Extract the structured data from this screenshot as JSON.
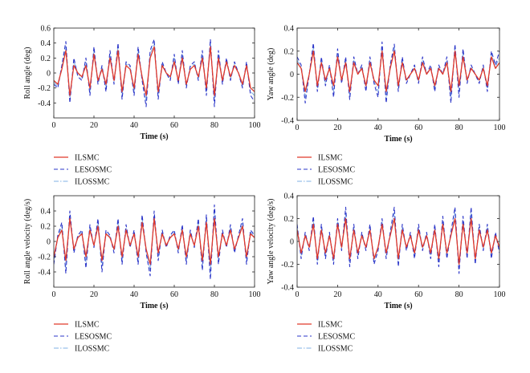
{
  "legend": [
    {
      "name": "ILSMC",
      "color": "#e0392b",
      "dash": "solid"
    },
    {
      "name": "LESOSMC",
      "color": "#2b35c8",
      "dash": "dashed"
    },
    {
      "name": "ILOSSMC",
      "color": "#7fb0e6",
      "dash": "dashdot"
    }
  ],
  "chart_data": [
    {
      "type": "line",
      "xlabel": "Time (s)",
      "ylabel": "Roll angle (deg)",
      "xlim": [
        0,
        100
      ],
      "ylim": [
        -0.6,
        0.6
      ],
      "xticks": [
        0,
        20,
        40,
        60,
        80,
        100
      ],
      "yticks": [
        -0.4,
        -0.2,
        0,
        0.2,
        0.4,
        0.6
      ],
      "ytick_labels": [
        "-0.4",
        "-0.2",
        "0",
        "0.2",
        "0.4",
        "0.6"
      ],
      "x": [
        0,
        2,
        4,
        6,
        8,
        10,
        12,
        14,
        16,
        18,
        20,
        22,
        24,
        26,
        28,
        30,
        32,
        34,
        36,
        38,
        40,
        42,
        44,
        46,
        48,
        50,
        52,
        54,
        56,
        58,
        60,
        62,
        64,
        66,
        68,
        70,
        72,
        74,
        76,
        78,
        80,
        82,
        84,
        86,
        88,
        90,
        92,
        94,
        96,
        98,
        100
      ],
      "series": [
        {
          "name": "ILSMC",
          "values": [
            -0.1,
            -0.15,
            0.05,
            0.3,
            -0.3,
            0.1,
            0.0,
            -0.05,
            0.1,
            -0.2,
            0.25,
            -0.1,
            0.05,
            -0.15,
            0.2,
            -0.1,
            0.3,
            -0.25,
            0.1,
            0.05,
            -0.2,
            0.25,
            -0.05,
            -0.3,
            0.2,
            0.35,
            -0.25,
            0.1,
            0.0,
            -0.05,
            0.15,
            -0.1,
            0.2,
            -0.15,
            0.05,
            0.1,
            -0.05,
            0.2,
            -0.2,
            0.35,
            -0.3,
            0.2,
            -0.1,
            0.15,
            -0.05,
            0.1,
            0.0,
            -0.15,
            0.1,
            -0.2,
            -0.25
          ]
        },
        {
          "name": "LESOSMC",
          "values": [
            -0.15,
            -0.2,
            0.1,
            0.42,
            -0.4,
            0.2,
            -0.05,
            -0.1,
            0.2,
            -0.3,
            0.35,
            -0.15,
            0.1,
            -0.25,
            0.3,
            -0.15,
            0.4,
            -0.35,
            0.15,
            0.1,
            -0.3,
            0.35,
            -0.1,
            -0.45,
            0.3,
            0.45,
            -0.35,
            0.15,
            0.0,
            -0.1,
            0.25,
            -0.15,
            0.3,
            -0.2,
            0.1,
            0.15,
            -0.1,
            0.3,
            -0.3,
            0.45,
            -0.45,
            0.3,
            -0.15,
            0.2,
            -0.1,
            0.15,
            0.0,
            -0.2,
            0.15,
            -0.3,
            -0.38
          ]
        },
        {
          "name": "ILOSSMC",
          "values": [
            -0.12,
            -0.18,
            0.08,
            0.35,
            -0.35,
            0.15,
            0.0,
            -0.08,
            0.15,
            -0.25,
            0.3,
            -0.12,
            0.08,
            -0.2,
            0.25,
            -0.12,
            0.35,
            -0.3,
            0.12,
            0.08,
            -0.25,
            0.3,
            -0.08,
            -0.38,
            0.25,
            0.4,
            -0.3,
            0.12,
            0.0,
            -0.08,
            0.2,
            -0.12,
            0.25,
            -0.18,
            0.08,
            0.12,
            -0.08,
            0.25,
            -0.25,
            0.4,
            -0.38,
            0.25,
            -0.12,
            0.18,
            -0.08,
            0.12,
            0.0,
            -0.18,
            0.12,
            -0.25,
            -0.3
          ]
        }
      ]
    },
    {
      "type": "line",
      "xlabel": "Time (s)",
      "ylabel": "Yaw angle (deg)",
      "xlim": [
        0,
        100
      ],
      "ylim": [
        -0.4,
        0.4
      ],
      "xticks": [
        0,
        20,
        40,
        60,
        80,
        100
      ],
      "yticks": [
        -0.4,
        -0.2,
        0,
        0.2,
        0.4
      ],
      "ytick_labels": [
        "-0.4",
        "-0.2",
        "0",
        "0.2",
        "0.4"
      ],
      "x": [
        0,
        2,
        4,
        6,
        8,
        10,
        12,
        14,
        16,
        18,
        20,
        22,
        24,
        26,
        28,
        30,
        32,
        34,
        36,
        38,
        40,
        42,
        44,
        46,
        48,
        50,
        52,
        54,
        56,
        58,
        60,
        62,
        64,
        66,
        68,
        70,
        72,
        74,
        76,
        78,
        80,
        82,
        84,
        86,
        88,
        90,
        92,
        94,
        96,
        98,
        100
      ],
      "series": [
        {
          "name": "ILSMC",
          "values": [
            0.1,
            0.05,
            -0.15,
            0.0,
            0.2,
            -0.1,
            0.1,
            -0.05,
            0.05,
            -0.1,
            0.15,
            -0.05,
            0.1,
            -0.15,
            0.1,
            0.0,
            0.05,
            -0.1,
            0.1,
            -0.05,
            -0.1,
            0.2,
            -0.15,
            0.05,
            0.2,
            -0.1,
            0.1,
            -0.05,
            0.0,
            0.05,
            -0.05,
            0.1,
            0.0,
            0.05,
            -0.1,
            0.05,
            0.0,
            0.1,
            -0.15,
            0.2,
            -0.1,
            0.15,
            -0.05,
            0.05,
            0.0,
            -0.05,
            0.05,
            -0.1,
            0.15,
            0.05,
            0.1
          ]
        },
        {
          "name": "LESOSMC",
          "values": [
            0.15,
            0.08,
            -0.25,
            0.0,
            0.27,
            -0.15,
            0.15,
            -0.1,
            0.08,
            -0.2,
            0.22,
            -0.08,
            0.15,
            -0.22,
            0.15,
            0.0,
            0.08,
            -0.15,
            0.15,
            -0.08,
            -0.2,
            0.28,
            -0.25,
            0.08,
            0.26,
            -0.15,
            0.15,
            -0.08,
            0.0,
            0.08,
            -0.08,
            0.15,
            0.0,
            0.08,
            -0.15,
            0.08,
            0.0,
            0.15,
            -0.25,
            0.26,
            -0.2,
            0.22,
            -0.08,
            0.08,
            0.0,
            -0.08,
            0.08,
            -0.15,
            0.2,
            0.08,
            0.2
          ]
        },
        {
          "name": "ILOSSMC",
          "values": [
            0.12,
            0.06,
            -0.2,
            0.0,
            0.23,
            -0.12,
            0.12,
            -0.08,
            0.06,
            -0.15,
            0.18,
            -0.06,
            0.12,
            -0.18,
            0.12,
            0.0,
            0.06,
            -0.12,
            0.12,
            -0.06,
            -0.15,
            0.24,
            -0.2,
            0.06,
            0.23,
            -0.12,
            0.12,
            -0.06,
            0.0,
            0.06,
            -0.06,
            0.12,
            0.0,
            0.06,
            -0.12,
            0.06,
            0.0,
            0.12,
            -0.2,
            0.23,
            -0.15,
            0.18,
            -0.06,
            0.06,
            0.0,
            -0.06,
            0.06,
            -0.12,
            0.18,
            0.06,
            0.15
          ]
        }
      ]
    },
    {
      "type": "line",
      "xlabel": "Time (s)",
      "ylabel": "Roll angle velocity (deg/s)",
      "xlim": [
        0,
        100
      ],
      "ylim": [
        -0.6,
        0.6
      ],
      "xticks": [
        0,
        20,
        40,
        60,
        80,
        100
      ],
      "yticks": [
        -0.4,
        -0.2,
        0,
        0.2,
        0.4
      ],
      "ytick_labels": [
        "-0.4",
        "-0.2",
        "0",
        "0.2",
        "0.4"
      ],
      "x": [
        0,
        2,
        4,
        6,
        8,
        10,
        12,
        14,
        16,
        18,
        20,
        22,
        24,
        26,
        28,
        30,
        32,
        34,
        36,
        38,
        40,
        42,
        44,
        46,
        48,
        50,
        52,
        54,
        56,
        58,
        60,
        62,
        64,
        66,
        68,
        70,
        72,
        74,
        76,
        78,
        80,
        82,
        84,
        86,
        88,
        90,
        92,
        94,
        96,
        98,
        100
      ],
      "series": [
        {
          "name": "ILSMC",
          "values": [
            -0.2,
            0.05,
            0.15,
            -0.25,
            0.3,
            -0.1,
            0.05,
            0.1,
            -0.2,
            0.15,
            -0.05,
            0.2,
            -0.25,
            0.1,
            0.05,
            -0.1,
            0.2,
            -0.2,
            0.15,
            -0.05,
            0.1,
            -0.2,
            0.25,
            -0.1,
            -0.3,
            0.3,
            -0.15,
            0.1,
            -0.05,
            0.05,
            0.1,
            -0.1,
            0.15,
            -0.2,
            0.1,
            -0.05,
            0.2,
            -0.25,
            0.25,
            -0.3,
            0.3,
            -0.2,
            0.1,
            -0.05,
            0.15,
            -0.1,
            0.05,
            0.2,
            -0.2,
            0.1,
            0.05
          ]
        },
        {
          "name": "LESOSMC",
          "values": [
            -0.3,
            0.08,
            0.25,
            -0.42,
            0.4,
            -0.15,
            0.08,
            0.15,
            -0.35,
            0.22,
            -0.08,
            0.3,
            -0.4,
            0.15,
            0.08,
            -0.15,
            0.3,
            -0.3,
            0.22,
            -0.08,
            0.15,
            -0.3,
            0.35,
            -0.15,
            -0.45,
            0.4,
            -0.25,
            0.15,
            -0.08,
            0.08,
            0.15,
            -0.15,
            0.22,
            -0.3,
            0.15,
            -0.08,
            0.3,
            -0.38,
            0.35,
            -0.5,
            0.48,
            -0.3,
            0.15,
            -0.08,
            0.22,
            -0.15,
            0.08,
            0.3,
            -0.3,
            0.15,
            0.08
          ]
        },
        {
          "name": "ILOSSMC",
          "values": [
            -0.25,
            0.06,
            0.2,
            -0.35,
            0.35,
            -0.12,
            0.06,
            0.12,
            -0.28,
            0.18,
            -0.06,
            0.25,
            -0.33,
            0.12,
            0.06,
            -0.12,
            0.25,
            -0.25,
            0.18,
            -0.06,
            0.12,
            -0.25,
            0.3,
            -0.12,
            -0.38,
            0.35,
            -0.2,
            0.12,
            -0.06,
            0.06,
            0.12,
            -0.12,
            0.18,
            -0.25,
            0.12,
            -0.06,
            0.25,
            -0.32,
            0.3,
            -0.42,
            0.4,
            -0.25,
            0.12,
            -0.06,
            0.18,
            -0.12,
            0.06,
            0.25,
            -0.25,
            0.12,
            0.06
          ]
        }
      ]
    },
    {
      "type": "line",
      "xlabel": "Time (s)",
      "ylabel": "Yaw angle velocity (deg/s)",
      "xlim": [
        0,
        100
      ],
      "ylim": [
        -0.4,
        0.4
      ],
      "xticks": [
        0,
        20,
        40,
        60,
        80,
        100
      ],
      "yticks": [
        -0.4,
        -0.2,
        0,
        0.2,
        0.4
      ],
      "ytick_labels": [
        "-0.4",
        "-0.2",
        "0",
        "0.2",
        "0.4"
      ],
      "x": [
        0,
        2,
        4,
        6,
        8,
        10,
        12,
        14,
        16,
        18,
        20,
        22,
        24,
        26,
        28,
        30,
        32,
        34,
        36,
        38,
        40,
        42,
        44,
        46,
        48,
        50,
        52,
        54,
        56,
        58,
        60,
        62,
        64,
        66,
        68,
        70,
        72,
        74,
        76,
        78,
        80,
        82,
        84,
        86,
        88,
        90,
        92,
        94,
        96,
        98,
        100
      ],
      "series": [
        {
          "name": "ILSMC",
          "values": [
            0.1,
            -0.1,
            0.05,
            -0.05,
            0.15,
            -0.15,
            0.1,
            -0.1,
            0.05,
            -0.15,
            0.15,
            -0.05,
            0.2,
            -0.15,
            0.1,
            -0.1,
            0.05,
            -0.05,
            0.1,
            -0.15,
            -0.05,
            0.15,
            -0.1,
            0.05,
            0.2,
            -0.15,
            0.1,
            -0.05,
            0.05,
            -0.1,
            0.1,
            -0.05,
            0.05,
            -0.1,
            0.1,
            -0.15,
            0.15,
            -0.1,
            0.05,
            0.2,
            -0.2,
            0.15,
            -0.1,
            0.2,
            -0.15,
            0.1,
            -0.05,
            0.1,
            -0.1,
            0.05,
            -0.05
          ]
        },
        {
          "name": "LESOSMC",
          "values": [
            0.15,
            -0.15,
            0.08,
            -0.08,
            0.22,
            -0.2,
            0.15,
            -0.15,
            0.08,
            -0.2,
            0.2,
            -0.08,
            0.3,
            -0.22,
            0.15,
            -0.15,
            0.08,
            -0.08,
            0.15,
            -0.2,
            -0.08,
            0.2,
            -0.15,
            0.08,
            0.3,
            -0.22,
            0.15,
            -0.08,
            0.08,
            -0.15,
            0.15,
            -0.08,
            0.08,
            -0.15,
            0.15,
            -0.22,
            0.22,
            -0.15,
            0.08,
            0.3,
            -0.28,
            0.22,
            -0.15,
            0.3,
            -0.2,
            0.15,
            -0.08,
            0.15,
            -0.15,
            0.08,
            -0.1
          ]
        },
        {
          "name": "ILOSSMC",
          "values": [
            0.12,
            -0.12,
            0.06,
            -0.06,
            0.18,
            -0.17,
            0.12,
            -0.12,
            0.06,
            -0.17,
            0.17,
            -0.06,
            0.25,
            -0.18,
            0.12,
            -0.12,
            0.06,
            -0.06,
            0.12,
            -0.17,
            -0.06,
            0.17,
            -0.12,
            0.06,
            0.25,
            -0.18,
            0.12,
            -0.06,
            0.06,
            -0.12,
            0.12,
            -0.06,
            0.06,
            -0.12,
            0.12,
            -0.18,
            0.18,
            -0.12,
            0.06,
            0.25,
            -0.24,
            0.18,
            -0.12,
            0.25,
            -0.17,
            0.12,
            -0.06,
            0.12,
            -0.12,
            0.06,
            -0.08
          ]
        }
      ]
    }
  ]
}
